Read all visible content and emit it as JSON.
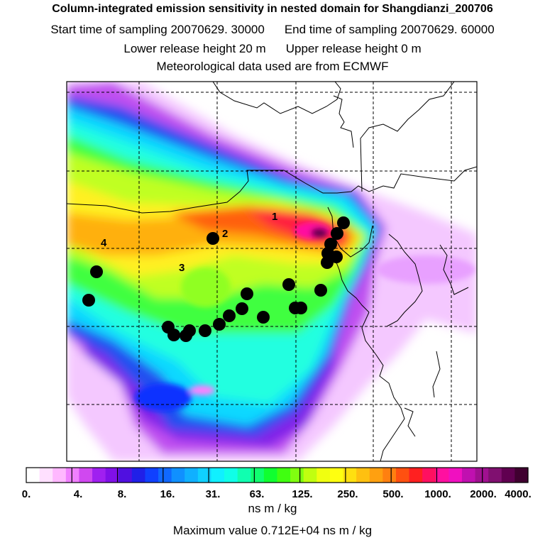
{
  "header": {
    "title": "Column-integrated emission sensitivity in nested domain for Shangdianzi_200706",
    "start_time": "Start time of sampling 20070629. 30000",
    "end_time": "End time of sampling 20070629. 60000",
    "lower_release": "Lower release height   20 m",
    "upper_release": "Upper release height    0 m",
    "met_data": "Meteorological data used are from ECMWF"
  },
  "map": {
    "region_labels": [
      "1",
      "2",
      "3",
      "4"
    ],
    "receptor_color": "#000000",
    "grid_style": "dashed"
  },
  "colorbar": {
    "tick_labels": [
      "0.",
      "4.",
      "8.",
      "16.",
      "31.",
      "63.",
      "125.",
      "250.",
      "500.",
      "1000.",
      "2000.",
      "4000."
    ],
    "colors": [
      "#ffffff",
      "#ffe0ff",
      "#ffb8ff",
      "#f080ff",
      "#d048f0",
      "#a020f0",
      "#8010e8",
      "#5010e0",
      "#2020e8",
      "#1040ff",
      "#1068ff",
      "#1090ff",
      "#10b0ff",
      "#10d0ff",
      "#10f0ff",
      "#10ffe8",
      "#10ffb0",
      "#10ff70",
      "#10ff30",
      "#40ff10",
      "#80ff10",
      "#c0ff10",
      "#f0ff10",
      "#ffff10",
      "#ffe010",
      "#ffc010",
      "#ffa010",
      "#ff8010",
      "#ff5010",
      "#ff2020",
      "#ff1060",
      "#ff10a0",
      "#f010c0",
      "#c010b0",
      "#a01090",
      "#801070",
      "#600050",
      "#400030"
    ],
    "units": "ns m / kg"
  },
  "footer": {
    "max_value": "Maximum value  0.712E+04 ns m / kg"
  }
}
